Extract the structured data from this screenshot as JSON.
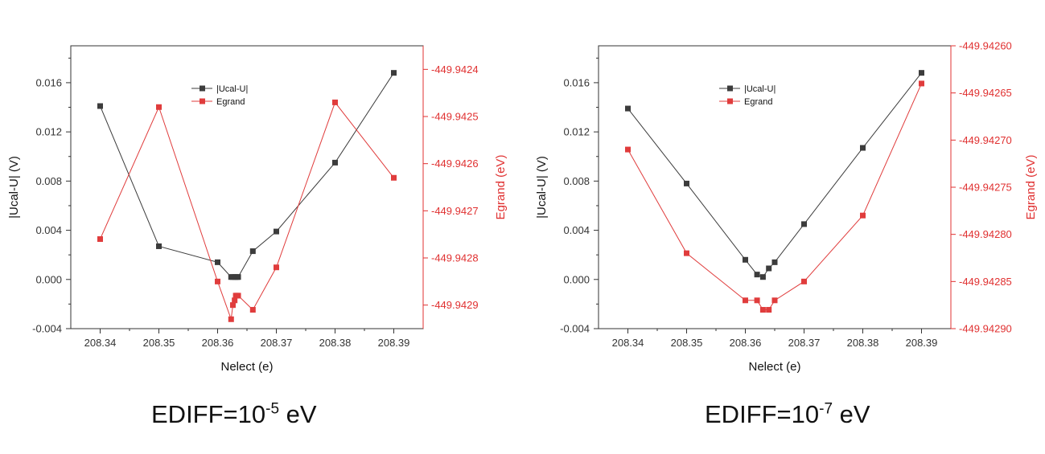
{
  "colors": {
    "black_series": "#3c3c3c",
    "red_series": "#e03c3c",
    "axis": "#333333",
    "right_axis": "#e03030"
  },
  "captions": [
    {
      "prefix": "EDIFF=10",
      "exponent": "-5",
      "suffix": " eV"
    },
    {
      "prefix": "EDIFF=10",
      "exponent": "-7",
      "suffix": " eV"
    }
  ],
  "chart_data": [
    {
      "type": "line",
      "marker": "square",
      "xlabel": "Nelect (e)",
      "ylabel": "|Ucal-U| (V)",
      "ylabel_right": "Egrand (eV)",
      "xlim": [
        208.335,
        208.395
      ],
      "ylim": [
        -0.004,
        0.019
      ],
      "ylim_right": [
        -449.94295,
        -449.94235
      ],
      "x_ticks": [
        "208.34",
        "208.35",
        "208.36",
        "208.37",
        "208.38",
        "208.39"
      ],
      "y_ticks": [
        "-0.004",
        "0.000",
        "0.004",
        "0.008",
        "0.012",
        "0.016"
      ],
      "y_ticks_right": [
        "-449.9424",
        "-449.9425",
        "-449.9426",
        "-449.9427",
        "-449.9428",
        "-449.9429"
      ],
      "legend": {
        "position": "top-center",
        "entries": [
          "|Ucal-U|",
          "Egrand"
        ]
      },
      "series": [
        {
          "name": "|Ucal-U|",
          "axis": "left",
          "color": "#3c3c3c",
          "x": [
            208.34,
            208.35,
            208.36,
            208.3623,
            208.3626,
            208.363,
            208.3633,
            208.3635,
            208.366,
            208.37,
            208.38,
            208.39
          ],
          "y": [
            0.0141,
            0.0027,
            0.0014,
            0.0002,
            0.0002,
            0.0002,
            0.0002,
            0.0002,
            0.0023,
            0.0039,
            0.0095,
            0.0168
          ]
        },
        {
          "name": "Egrand",
          "axis": "right",
          "color": "#e03c3c",
          "x": [
            208.34,
            208.35,
            208.36,
            208.3623,
            208.3626,
            208.3629,
            208.3631,
            208.3633,
            208.3635,
            208.366,
            208.37,
            208.38,
            208.39
          ],
          "y": [
            -449.94276,
            -449.94248,
            -449.94285,
            -449.94293,
            -449.9429,
            -449.94289,
            -449.94288,
            -449.94288,
            -449.94288,
            -449.94291,
            -449.94282,
            -449.94247,
            -449.94263
          ]
        }
      ]
    },
    {
      "type": "line",
      "marker": "square",
      "xlabel": "Nelect (e)",
      "ylabel": "|Ucal-U| (V)",
      "ylabel_right": "Egrand (eV)",
      "xlim": [
        208.335,
        208.395
      ],
      "ylim": [
        -0.004,
        0.019
      ],
      "ylim_right": [
        -449.9429,
        -449.9426
      ],
      "x_ticks": [
        "208.34",
        "208.35",
        "208.36",
        "208.37",
        "208.38",
        "208.39"
      ],
      "y_ticks": [
        "-0.004",
        "0.000",
        "0.004",
        "0.008",
        "0.012",
        "0.016"
      ],
      "y_ticks_right": [
        "-449.94260",
        "-449.94265",
        "-449.94270",
        "-449.94275",
        "-449.94280",
        "-449.94285",
        "-449.94290"
      ],
      "legend": {
        "position": "top-center",
        "entries": [
          "|Ucal-U|",
          "Egrand"
        ]
      },
      "series": [
        {
          "name": "|Ucal-U|",
          "axis": "left",
          "color": "#3c3c3c",
          "x": [
            208.34,
            208.35,
            208.36,
            208.362,
            208.363,
            208.364,
            208.365,
            208.37,
            208.38,
            208.39
          ],
          "y": [
            0.0139,
            0.0078,
            0.0016,
            0.0004,
            0.0002,
            0.0009,
            0.0014,
            0.0045,
            0.0107,
            0.0168
          ]
        },
        {
          "name": "Egrand",
          "axis": "right",
          "color": "#e03c3c",
          "x": [
            208.34,
            208.35,
            208.36,
            208.362,
            208.363,
            208.364,
            208.365,
            208.37,
            208.38,
            208.39
          ],
          "y": [
            -449.94271,
            -449.94282,
            -449.94287,
            -449.94287,
            -449.94288,
            -449.94288,
            -449.94287,
            -449.94285,
            -449.94278,
            -449.94264
          ]
        }
      ]
    }
  ]
}
